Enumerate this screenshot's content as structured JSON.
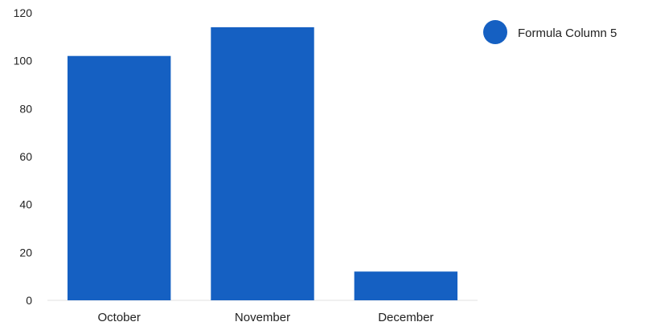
{
  "chart_data": {
    "type": "bar",
    "categories": [
      "October",
      "November",
      "December"
    ],
    "series": [
      {
        "name": "Formula Column 5",
        "values": [
          102,
          114,
          12
        ],
        "color": "#1560c2"
      }
    ],
    "ylim": [
      0,
      120
    ],
    "yticks": [
      0,
      20,
      40,
      60,
      80,
      100,
      120
    ],
    "ytick_labels": [
      "0",
      "20",
      "40",
      "60",
      "80",
      "100",
      "120"
    ],
    "grid": false,
    "legend_position": "top-right",
    "axis_color": "#e0e0e0"
  }
}
